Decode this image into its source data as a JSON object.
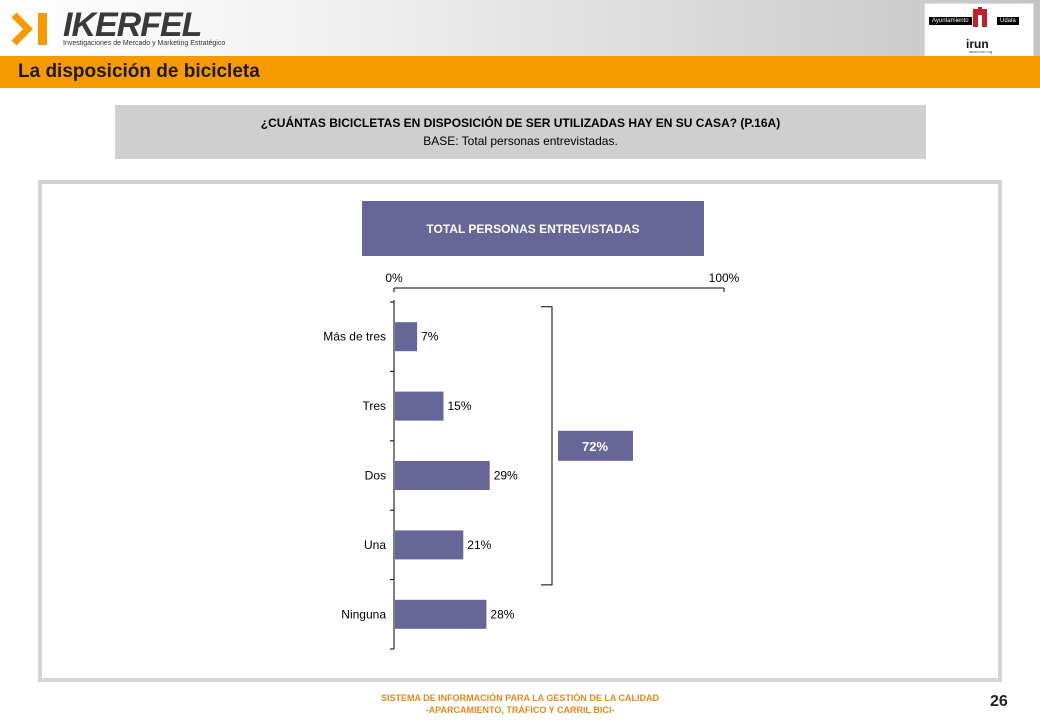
{
  "brand": {
    "name": "IKERFEL",
    "tagline": "Investigaciones de Mercado y Marketing Estratégico"
  },
  "partner_logo": {
    "left_label": "Ayuntamiento",
    "right_label": "Udala",
    "name": "irun",
    "url": "www.irun.org"
  },
  "page": {
    "title": "La disposición de bicicleta",
    "number": "26"
  },
  "question": {
    "text": "¿CUÁNTAS BICICLETAS EN DISPOSICIÓN DE SER UTILIZADAS HAY EN SU CASA? (P.16A)",
    "base": "BASE: Total personas entrevistadas."
  },
  "chart_data": {
    "type": "bar",
    "orientation": "horizontal",
    "title": "TOTAL PERSONAS ENTREVISTADAS",
    "categories": [
      "Más de tres",
      "Tres",
      "Dos",
      "Una",
      "Ninguna"
    ],
    "values": [
      7,
      15,
      29,
      21,
      28
    ],
    "value_labels": [
      "7%",
      "15%",
      "29%",
      "21%",
      "28%"
    ],
    "xlim": [
      0,
      100
    ],
    "x_tick_labels": [
      "0%",
      "100%"
    ],
    "grid": false,
    "bar_color": "#666699",
    "bracket": {
      "categories": [
        "Más de tres",
        "Tres",
        "Dos",
        "Una"
      ],
      "label": "72%"
    }
  },
  "footer": {
    "line1": "SISTEMA DE INFORMACIÓN PARA LA GESTIÓN DE LA CALIDAD",
    "line2": "-APARCAMIENTO, TRÁFICO Y CARRIL BICI-"
  },
  "colors": {
    "accent": "#f79a00",
    "bar": "#666699",
    "footer_text": "#e08a1e"
  }
}
